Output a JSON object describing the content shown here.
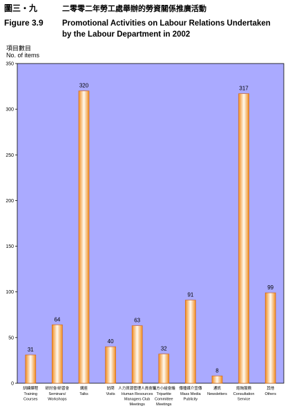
{
  "header": {
    "figure_zh": "圖三・九",
    "title_zh": "二零零二年勞工處舉辦的勞資關係推廣活動",
    "figure_en": "Figure 3.9",
    "title_en_line1": "Promotional Activities on Labour Relations Undertaken",
    "title_en_line2": "by the Labour Department in 2002"
  },
  "chart_data": {
    "type": "bar",
    "ylabel_zh": "項目數目",
    "ylabel_en": "No. of items",
    "ylim": [
      0,
      350
    ],
    "yticks": [
      0,
      50,
      100,
      150,
      200,
      250,
      300,
      350
    ],
    "grid": false,
    "categories": [
      {
        "zh": "訓練課程",
        "en": [
          "Training",
          "Courses"
        ]
      },
      {
        "zh": "研討會/研習會",
        "en": [
          "Seminars/",
          "Workshops"
        ]
      },
      {
        "zh": "講座",
        "en": [
          "Talks"
        ]
      },
      {
        "zh": "訪問",
        "en": [
          "Visits"
        ]
      },
      {
        "zh": "人力資源管理人員會議",
        "en": [
          "Human Resources",
          "Managers Club",
          "Meetings"
        ]
      },
      {
        "zh": "三方小組會議",
        "en": [
          "Tripartite",
          "Committee",
          "Meetings"
        ]
      },
      {
        "zh": "傳播媒介宣傳",
        "en": [
          "Mass Media",
          "Publicity"
        ]
      },
      {
        "zh": "通訊",
        "en": [
          "Newsletters"
        ]
      },
      {
        "zh": "諮詢服務",
        "en": [
          "Consultation",
          "Service"
        ]
      },
      {
        "zh": "其他",
        "en": [
          "Others"
        ]
      }
    ],
    "values": [
      31,
      64,
      320,
      40,
      63,
      32,
      91,
      8,
      317,
      99
    ],
    "colors": {
      "plot_bg": "#aaaaff",
      "bar_edge": "#d2691e",
      "bar_light": "#fffaf0",
      "bar_dark": "#f08c1e"
    }
  }
}
